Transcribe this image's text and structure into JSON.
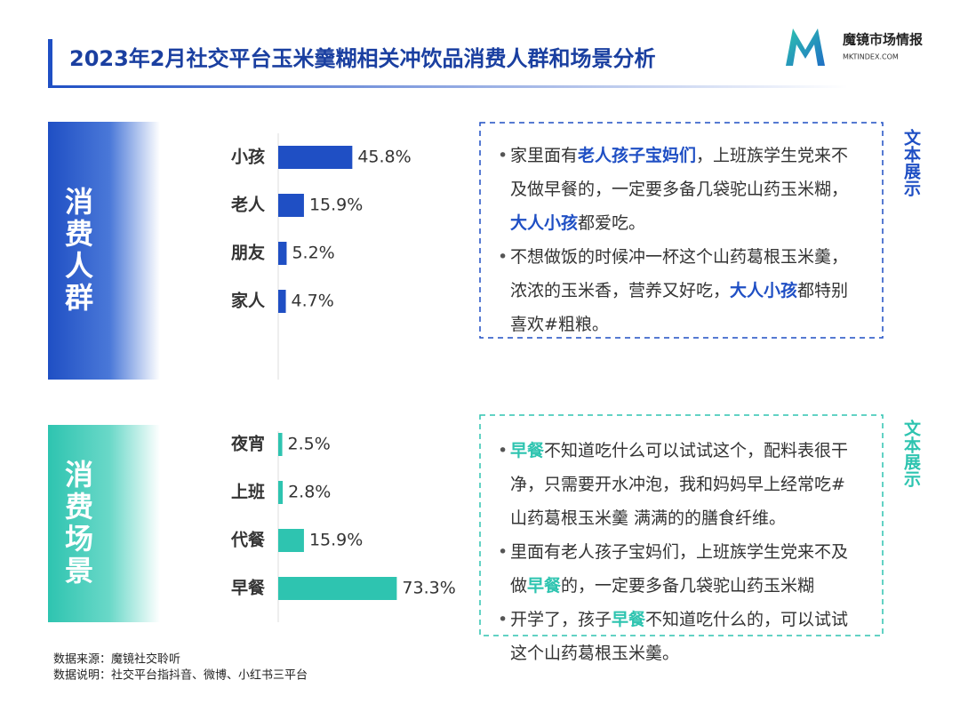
{
  "header": {
    "title": "2023年2月社交平台玉米羹糊相关冲饮品消费人群和场景分析",
    "logo_name": "魔镜市场情报",
    "logo_url": "MKTINDEX.COM"
  },
  "chart_data": [
    {
      "type": "bar",
      "orientation": "horizontal",
      "title": "消费人群",
      "categories": [
        "小孩",
        "老人",
        "朋友",
        "家人"
      ],
      "values": [
        45.8,
        15.9,
        5.2,
        4.7
      ],
      "value_labels": [
        "45.8%",
        "15.9%",
        "5.2%",
        "4.7%"
      ],
      "color": "#1f4fc4"
    },
    {
      "type": "bar",
      "orientation": "horizontal",
      "title": "消费场景",
      "categories": [
        "夜宵",
        "上班",
        "代餐",
        "早餐"
      ],
      "values": [
        2.5,
        2.8,
        15.9,
        73.3
      ],
      "value_labels": [
        "2.5%",
        "2.8%",
        "15.9%",
        "73.3%"
      ],
      "color": "#2ec4b0"
    }
  ],
  "text_panels": [
    {
      "label": "文本展示",
      "color": "#1f4fc4",
      "bullets": [
        [
          {
            "text": "家里面有"
          },
          {
            "text": "老人孩子宝妈们",
            "highlight": true
          },
          {
            "text": "，上班族学生党来不及做早餐的，一定要多备几袋驼山药玉米糊，"
          },
          {
            "text": "大人小孩",
            "highlight": true
          },
          {
            "text": "都爱吃。"
          }
        ],
        [
          {
            "text": "不想做饭的时候冲一杯这个山药葛根玉米羹，浓浓的玉米香，营养又好吃，"
          },
          {
            "text": "大人小孩",
            "highlight": true
          },
          {
            "text": "都特别喜欢#粗粮。"
          }
        ]
      ]
    },
    {
      "label": "文本展示",
      "color": "#2ec4b0",
      "bullets": [
        [
          {
            "text": "早餐",
            "highlight": true
          },
          {
            "text": "不知道吃什么可以试试这个，配料表很干净，只需要开水冲泡，我和妈妈早上经常吃#山药葛根玉米羹 满满的的膳食纤维。"
          }
        ],
        [
          {
            "text": "里面有老人孩子宝妈们，上班族学生党来不及做"
          },
          {
            "text": "早餐",
            "highlight": true
          },
          {
            "text": "的，一定要多备几袋驼山药玉米糊"
          }
        ],
        [
          {
            "text": "开学了，孩子"
          },
          {
            "text": "早餐",
            "highlight": true
          },
          {
            "text": "不知道吃什么的，可以试试这个山药葛根玉米羹。"
          }
        ]
      ]
    }
  ],
  "footer": {
    "source": "数据来源：魔镜社交聆听",
    "note": "数据说明：社交平台指抖音、微博、小红书三平台"
  }
}
